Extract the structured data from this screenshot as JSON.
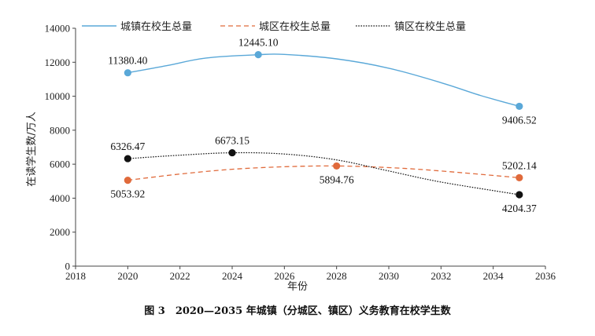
{
  "chart_data": {
    "type": "line",
    "caption": "图 3　2020—2035 年城镇（分城区、镇区）义务教育在校学生数",
    "xlabel": "年份",
    "ylabel": "在读学生数/万人",
    "xlim": [
      2018,
      2036
    ],
    "ylim": [
      0,
      14000
    ],
    "x_ticks": [
      "2018",
      "2020",
      "2022",
      "2024",
      "2026",
      "2028",
      "2030",
      "2032",
      "2034",
      "2036"
    ],
    "y_ticks": [
      "0",
      "2000",
      "4000",
      "6000",
      "8000",
      "10000",
      "12000",
      "14000"
    ],
    "grid": false,
    "legend_position": "top",
    "series": [
      {
        "name": "城镇在校生总量",
        "color": "#5aa8d8",
        "dash": "solid",
        "curve": [
          [
            2020,
            11380.4
          ],
          [
            2021.5,
            11800
          ],
          [
            2023,
            12250
          ],
          [
            2025,
            12445.1
          ],
          [
            2026,
            12460
          ],
          [
            2028,
            12200
          ],
          [
            2030,
            11650
          ],
          [
            2032,
            10800
          ],
          [
            2033.5,
            10050
          ],
          [
            2035,
            9406.52
          ]
        ],
        "points": [
          {
            "x": 2020,
            "y": 11380.4,
            "label": "11380.40",
            "pos": "above"
          },
          {
            "x": 2025,
            "y": 12445.1,
            "label": "12445.10",
            "pos": "above"
          },
          {
            "x": 2035,
            "y": 9406.52,
            "label": "9406.52",
            "pos": "below"
          }
        ]
      },
      {
        "name": "城区在校生总量",
        "color": "#e06a3b",
        "dash": "dashed",
        "curve": [
          [
            2020,
            5053.92
          ],
          [
            2022,
            5420
          ],
          [
            2024,
            5700
          ],
          [
            2026,
            5850
          ],
          [
            2028,
            5894.76
          ],
          [
            2030,
            5800
          ],
          [
            2032,
            5600
          ],
          [
            2035,
            5202.14
          ]
        ],
        "points": [
          {
            "x": 2020,
            "y": 5053.92,
            "label": "5053.92",
            "pos": "below"
          },
          {
            "x": 2028,
            "y": 5894.76,
            "label": "5894.76",
            "pos": "below"
          },
          {
            "x": 2035,
            "y": 5202.14,
            "label": "5202.14",
            "pos": "above"
          }
        ]
      },
      {
        "name": "镇区在校生总量",
        "color": "#111111",
        "dash": "dotted",
        "curve": [
          [
            2020,
            6326.47
          ],
          [
            2022,
            6530
          ],
          [
            2024,
            6673.15
          ],
          [
            2026,
            6600
          ],
          [
            2028,
            6250
          ],
          [
            2030,
            5600
          ],
          [
            2032,
            4950
          ],
          [
            2035,
            4204.37
          ]
        ],
        "points": [
          {
            "x": 2020,
            "y": 6326.47,
            "label": "6326.47",
            "pos": "above"
          },
          {
            "x": 2024,
            "y": 6673.15,
            "label": "6673.15",
            "pos": "above"
          },
          {
            "x": 2035,
            "y": 4204.37,
            "label": "4204.37",
            "pos": "below"
          }
        ]
      }
    ]
  }
}
